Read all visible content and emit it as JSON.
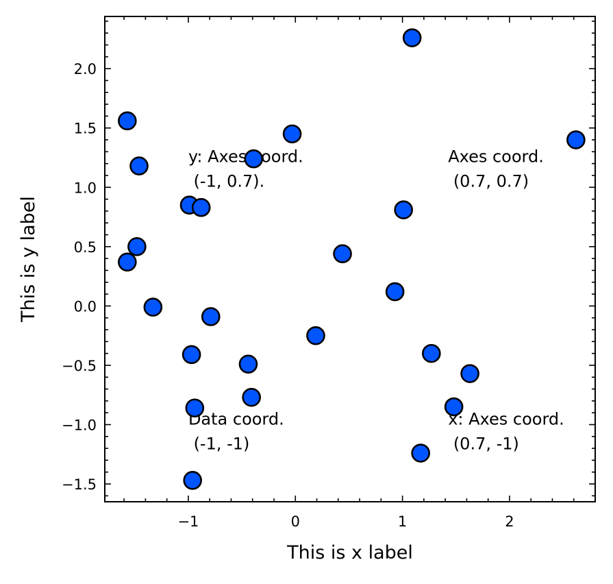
{
  "chart_data": {
    "type": "scatter",
    "xlabel": "This is x label",
    "ylabel": "This is y label",
    "xlim": [
      -1.78,
      2.8
    ],
    "ylim": [
      -1.65,
      2.44
    ],
    "xticks": [
      -1,
      0,
      1,
      2
    ],
    "xtick_labels": [
      "−1",
      "0",
      "1",
      "2"
    ],
    "yticks": [
      -1.5,
      -1.0,
      -0.5,
      0.0,
      0.5,
      1.0,
      1.5,
      2.0
    ],
    "ytick_labels": [
      "−1.5",
      "−1.0",
      "−0.5",
      "0.0",
      "0.5",
      "1.0",
      "1.5",
      "2.0"
    ],
    "grid": false,
    "marker_color": "#0055ff",
    "marker_edge_color": "#000000",
    "points": [
      {
        "x": 1.09,
        "y": 2.26
      },
      {
        "x": -1.57,
        "y": 1.56
      },
      {
        "x": -0.03,
        "y": 1.45
      },
      {
        "x": 2.62,
        "y": 1.4
      },
      {
        "x": -0.39,
        "y": 1.24
      },
      {
        "x": -1.46,
        "y": 1.18
      },
      {
        "x": -0.99,
        "y": 0.85
      },
      {
        "x": -0.88,
        "y": 0.83
      },
      {
        "x": 1.01,
        "y": 0.81
      },
      {
        "x": -1.48,
        "y": 0.5
      },
      {
        "x": 0.44,
        "y": 0.44
      },
      {
        "x": -1.57,
        "y": 0.37
      },
      {
        "x": 0.93,
        "y": 0.12
      },
      {
        "x": -1.33,
        "y": -0.01
      },
      {
        "x": -0.79,
        "y": -0.09
      },
      {
        "x": 0.19,
        "y": -0.25
      },
      {
        "x": 1.27,
        "y": -0.4
      },
      {
        "x": -0.97,
        "y": -0.41
      },
      {
        "x": -0.44,
        "y": -0.49
      },
      {
        "x": 1.63,
        "y": -0.57
      },
      {
        "x": -0.41,
        "y": -0.77
      },
      {
        "x": -0.94,
        "y": -0.86
      },
      {
        "x": 1.48,
        "y": -0.85
      },
      {
        "x": 1.17,
        "y": -1.24
      },
      {
        "x": -0.96,
        "y": -1.47
      }
    ],
    "annotations": [
      {
        "lines": [
          "y: Axes coord.",
          " (-1, 0.7)."
        ],
        "x_data": -1.0,
        "y_axes_frac": 0.7
      },
      {
        "lines": [
          "Axes coord.",
          " (0.7, 0.7)"
        ],
        "x_axes_frac": 0.7,
        "y_axes_frac": 0.7
      },
      {
        "lines": [
          "Data coord.",
          " (-1, -1)"
        ],
        "x_data": -1.0,
        "y_data": -1.0
      },
      {
        "lines": [
          "x: Axes coord.",
          " (0.7, -1)"
        ],
        "x_axes_frac": 0.7,
        "y_data": -1.0
      }
    ]
  }
}
